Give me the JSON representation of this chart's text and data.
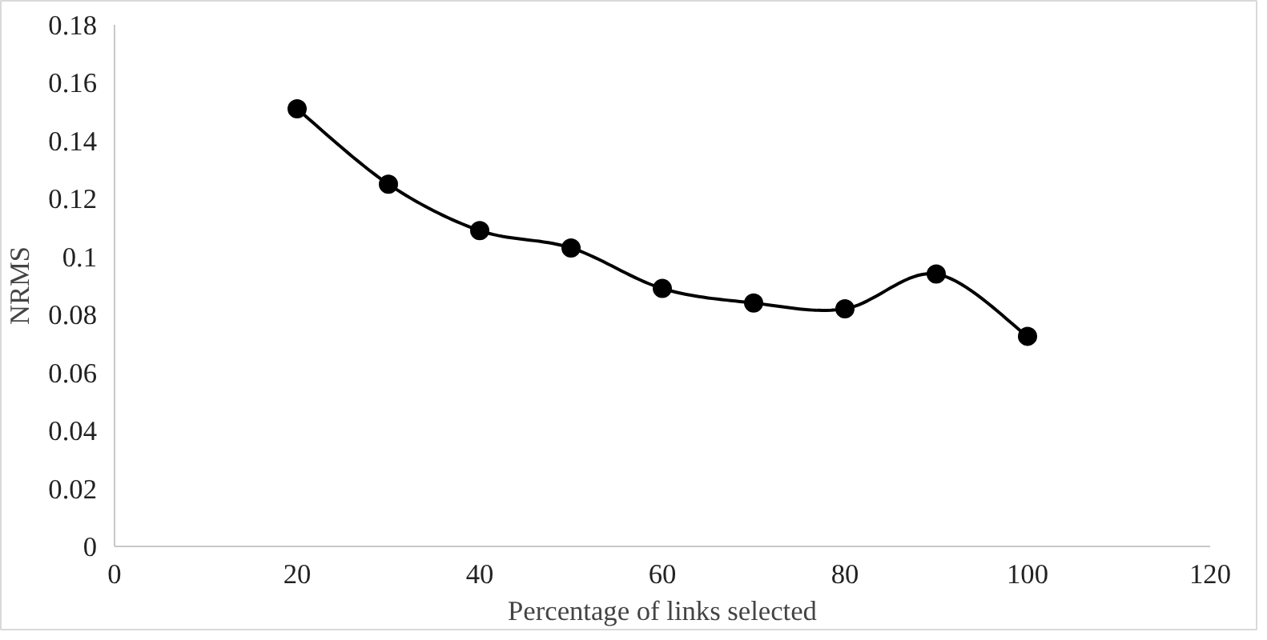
{
  "chart_data": {
    "type": "line",
    "xlabel": "Percentage of links selected",
    "ylabel": "NRMS",
    "x": [
      20,
      30,
      40,
      50,
      60,
      70,
      80,
      90,
      100
    ],
    "series": [
      {
        "color": "#000000",
        "values": [
          0.151,
          0.125,
          0.109,
          0.103,
          0.089,
          0.084,
          0.082,
          0.094,
          0.0725
        ]
      }
    ],
    "xlim": [
      0,
      120
    ],
    "xticks": [
      0,
      20,
      40,
      60,
      80,
      100,
      120
    ],
    "ylim": [
      0,
      0.18
    ],
    "yticks": [
      0,
      0.02,
      0.04,
      0.06,
      0.08,
      0.1,
      0.12,
      0.14,
      0.16,
      0.18
    ],
    "grid": false,
    "marker": "circle",
    "line_style": "solid"
  }
}
